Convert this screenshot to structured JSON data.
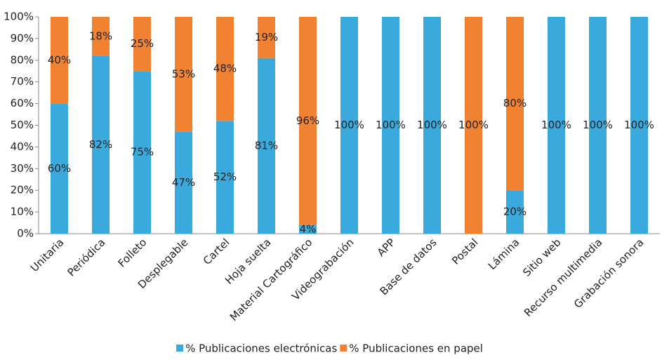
{
  "chart_data": {
    "type": "stacked_bar",
    "categories": [
      "Unitaria",
      "Periódica",
      "Folleto",
      "Desplegable",
      "Cartel",
      "Hoja suelta",
      "Material Cartográfico",
      "Videograbación",
      "APP",
      "Base de datos",
      "Postal",
      "Lámina",
      "Sitio web",
      "Recurso multimedia",
      "Grabación sonora"
    ],
    "series": [
      {
        "name": "% Publicaciones electrónicas",
        "color": "#3aa9dc",
        "values": [
          60,
          82,
          75,
          47,
          52,
          81,
          4,
          100,
          100,
          100,
          0,
          20,
          100,
          100,
          100
        ],
        "value_labels": [
          "60%",
          "82%",
          "75%",
          "47%",
          "52%",
          "81%",
          "4%",
          "100%",
          "100%",
          "100%",
          null,
          "20%",
          "100%",
          "100%",
          "100%"
        ]
      },
      {
        "name": "% Publicaciones en papel",
        "color": "#f08232",
        "values": [
          40,
          18,
          25,
          53,
          48,
          19,
          96,
          0,
          0,
          0,
          100,
          80,
          0,
          0,
          0
        ],
        "value_labels": [
          "40%",
          "18%",
          "25%",
          "53%",
          "48%",
          "19%",
          "96%",
          null,
          null,
          null,
          "100%",
          "80%",
          null,
          null,
          null
        ]
      }
    ],
    "ylim": [
      0,
      100
    ],
    "yticks": [
      {
        "value": 0,
        "label": "0%"
      },
      {
        "value": 10,
        "label": "10%"
      },
      {
        "value": 20,
        "label": "20%"
      },
      {
        "value": 30,
        "label": "30%"
      },
      {
        "value": 40,
        "label": "40%"
      },
      {
        "value": 50,
        "label": "50%"
      },
      {
        "value": 60,
        "label": "60%"
      },
      {
        "value": 70,
        "label": "70%"
      },
      {
        "value": 80,
        "label": "80%"
      },
      {
        "value": 90,
        "label": "90%"
      },
      {
        "value": 100,
        "label": "100%"
      }
    ],
    "legend": "bottom"
  }
}
